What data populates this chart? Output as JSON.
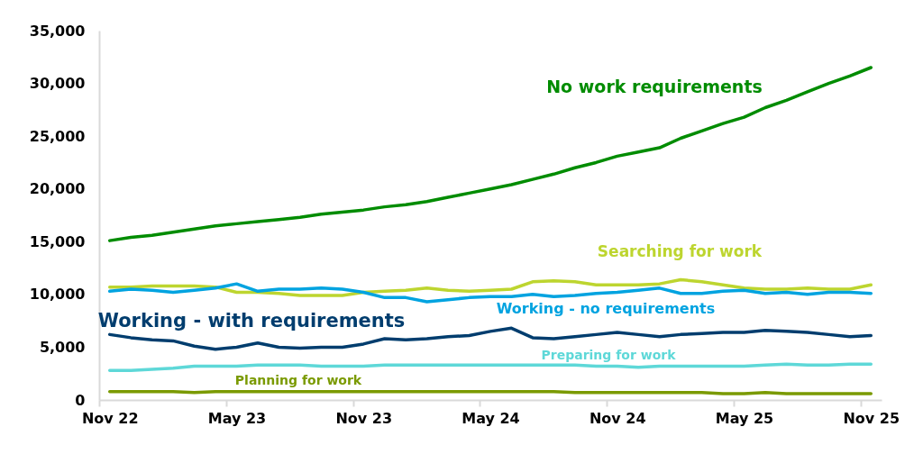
{
  "chart_data": {
    "type": "line",
    "categories": [
      "Nov 22",
      null,
      null,
      null,
      null,
      null,
      "May 23",
      null,
      null,
      null,
      null,
      null,
      "Nov 23",
      null,
      null,
      null,
      null,
      null,
      "May 24",
      null,
      null,
      null,
      null,
      null,
      "Nov 24",
      null,
      null,
      null,
      null,
      null,
      "May 25",
      null,
      null,
      null,
      null,
      null,
      "Nov 25"
    ],
    "ylim": [
      0,
      35000
    ],
    "yticks": [
      0,
      {
        "value": 5000,
        "label": "5,000"
      },
      {
        "value": 10000,
        "label": "10,000"
      },
      {
        "value": 15000,
        "label": "15,000"
      },
      {
        "value": 20000,
        "label": "20,000"
      },
      {
        "value": 25000,
        "label": "25,000"
      },
      {
        "value": 30000,
        "label": "30,000"
      },
      {
        "value": 35000,
        "label": "35,000"
      }
    ],
    "series": [
      {
        "name": "No work requirements",
        "color": "#008c00",
        "values": [
          15100,
          15400,
          15600,
          15900,
          16200,
          16500,
          16700,
          16900,
          17100,
          17300,
          17600,
          17800,
          18000,
          18300,
          18500,
          18800,
          19200,
          19600,
          20000,
          20400,
          20900,
          21400,
          22000,
          22500,
          23100,
          23500,
          23900,
          24800,
          25500,
          26200,
          26800,
          27700,
          28400,
          29200,
          30000,
          30700,
          31500
        ]
      },
      {
        "name": "Searching for work",
        "color": "#bdd52f",
        "values": [
          10700,
          10700,
          10800,
          10800,
          10800,
          10700,
          10200,
          10200,
          10100,
          9900,
          9900,
          9900,
          10200,
          10300,
          10400,
          10600,
          10400,
          10300,
          10400,
          10500,
          11200,
          11300,
          11200,
          10900,
          10900,
          10900,
          11000,
          11400,
          11200,
          10900,
          10600,
          10500,
          10500,
          10600,
          10500,
          10500,
          10900
        ]
      },
      {
        "name": "Working - no requirements",
        "color": "#00a3e0",
        "values": [
          10300,
          10500,
          10400,
          10200,
          10400,
          10600,
          11000,
          10300,
          10500,
          10500,
          10600,
          10500,
          10200,
          9700,
          9700,
          9300,
          9500,
          9700,
          9800,
          9800,
          10000,
          9800,
          9900,
          10100,
          10200,
          10400,
          10600,
          10100,
          10100,
          10300,
          10400,
          10100,
          10200,
          10000,
          10200,
          10200,
          10100
        ]
      },
      {
        "name": "Working - with requirements",
        "color": "#003d6e",
        "values": [
          6200,
          5900,
          5700,
          5600,
          5100,
          4800,
          5000,
          5400,
          5000,
          4900,
          5000,
          5000,
          5300,
          5800,
          5700,
          5800,
          6000,
          6100,
          6500,
          6800,
          5900,
          5800,
          6000,
          6200,
          6400,
          6200,
          6000,
          6200,
          6300,
          6400,
          6400,
          6600,
          6500,
          6400,
          6200,
          6000,
          6100
        ]
      },
      {
        "name": "Preparing for work",
        "color": "#5ed8d8",
        "values": [
          2800,
          2800,
          2900,
          3000,
          3200,
          3200,
          3200,
          3300,
          3300,
          3300,
          3200,
          3200,
          3200,
          3300,
          3300,
          3300,
          3300,
          3300,
          3300,
          3300,
          3300,
          3300,
          3300,
          3200,
          3200,
          3100,
          3200,
          3200,
          3200,
          3200,
          3200,
          3300,
          3400,
          3300,
          3300,
          3400,
          3400
        ]
      },
      {
        "name": "Planning for work",
        "color": "#7a9a01",
        "values": [
          800,
          800,
          800,
          800,
          700,
          800,
          800,
          800,
          800,
          800,
          800,
          800,
          800,
          800,
          800,
          800,
          800,
          800,
          800,
          800,
          800,
          800,
          700,
          700,
          700,
          700,
          700,
          700,
          700,
          600,
          600,
          700,
          600,
          600,
          600,
          600,
          600
        ]
      }
    ]
  }
}
